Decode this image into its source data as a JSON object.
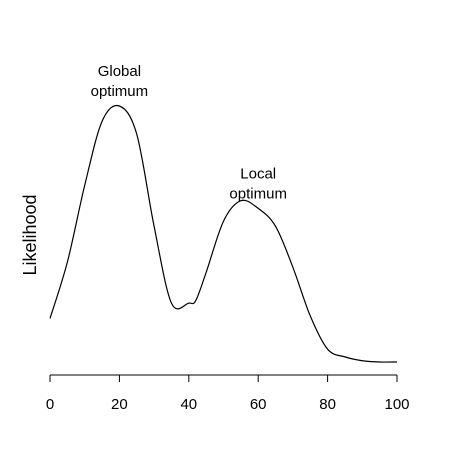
{
  "chart_data": {
    "type": "line",
    "title": "",
    "xlabel": "",
    "ylabel": "Likelihood",
    "xlim": [
      0,
      100
    ],
    "ylim": [
      0,
      1
    ],
    "grid": false,
    "show_y_axis": false,
    "x_ticks": [
      "0",
      "20",
      "40",
      "60",
      "80",
      "100"
    ],
    "x_tick_values": [
      0,
      20,
      40,
      60,
      80,
      100
    ],
    "series": [
      {
        "color": "#000000",
        "x": [
          0,
          5,
          10,
          15,
          20,
          25,
          30,
          35,
          40,
          42,
          45,
          50,
          55,
          60,
          65,
          70,
          75,
          80,
          85,
          90,
          95,
          100
        ],
        "y": [
          0.17,
          0.39,
          0.69,
          0.94,
          1.0,
          0.89,
          0.53,
          0.23,
          0.23,
          0.24,
          0.35,
          0.55,
          0.63,
          0.6,
          0.53,
          0.37,
          0.18,
          0.05,
          0.02,
          0.005,
          0.0,
          0.0
        ]
      }
    ],
    "annotations": [
      {
        "id": "global",
        "lines": [
          "Global",
          "optimum"
        ],
        "x": 20,
        "y": 1.0
      },
      {
        "id": "local",
        "lines": [
          "Local",
          "optimum"
        ],
        "x": 60,
        "y": 0.6
      }
    ]
  }
}
